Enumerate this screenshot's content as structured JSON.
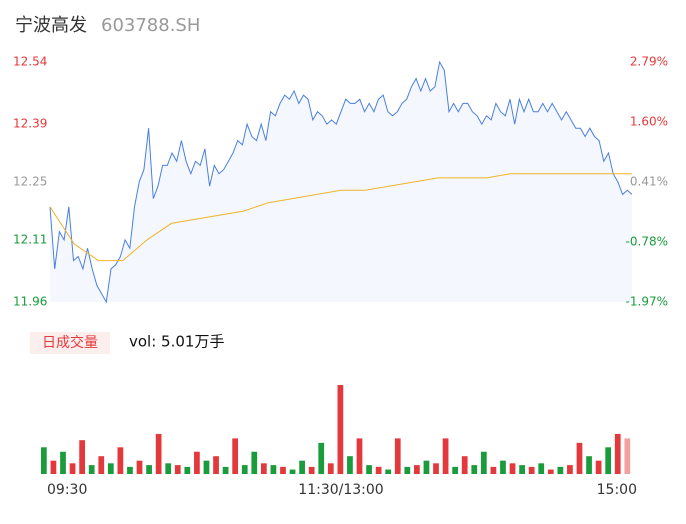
{
  "header": {
    "title": "宁波高发",
    "code": "603788.SH"
  },
  "chart_data": {
    "type": "line",
    "xlim": [
      0,
      240
    ],
    "xticks": [
      {
        "value": 0,
        "label": "09:30"
      },
      {
        "value": 120,
        "label": "11:30/13:00"
      },
      {
        "value": 240,
        "label": "15:00"
      }
    ],
    "ylim": [
      11.96,
      12.54
    ],
    "yticks": [
      11.96,
      12.11,
      12.25,
      12.39,
      12.54
    ],
    "ytick_colors": [
      "#1a9c3c",
      "#1a9c3c",
      "#999999",
      "#e4393c",
      "#e4393c"
    ],
    "y2lim": [
      -1.97,
      2.79
    ],
    "y2ticks": [
      {
        "value": -1.97,
        "label": "-1.97%"
      },
      {
        "value": -0.78,
        "label": "-0.78%"
      },
      {
        "value": 0.41,
        "label": "0.41%"
      },
      {
        "value": 1.6,
        "label": "1.60%"
      },
      {
        "value": 2.79,
        "label": "2.79%"
      }
    ],
    "series": [
      {
        "name": "price",
        "color": "#4a7fe0",
        "values": [
          12.19,
          12.04,
          12.13,
          12.11,
          12.19,
          12.06,
          12.07,
          12.04,
          12.09,
          12.04,
          12.0,
          11.98,
          11.96,
          12.04,
          12.05,
          12.07,
          12.11,
          12.09,
          12.19,
          12.25,
          12.28,
          12.38,
          12.21,
          12.24,
          12.29,
          12.29,
          12.32,
          12.3,
          12.35,
          12.3,
          12.27,
          12.3,
          12.29,
          12.33,
          12.24,
          12.29,
          12.27,
          12.28,
          12.3,
          12.32,
          12.35,
          12.34,
          12.39,
          12.36,
          12.35,
          12.39,
          12.35,
          12.42,
          12.41,
          12.44,
          12.46,
          12.45,
          12.47,
          12.44,
          12.46,
          12.45,
          12.4,
          12.42,
          12.41,
          12.39,
          12.4,
          12.39,
          12.42,
          12.45,
          12.44,
          12.44,
          12.45,
          12.42,
          12.44,
          12.42,
          12.45,
          12.46,
          12.42,
          12.41,
          12.42,
          12.44,
          12.45,
          12.48,
          12.5,
          12.47,
          12.5,
          12.47,
          12.48,
          12.54,
          12.52,
          12.42,
          12.44,
          12.42,
          12.44,
          12.44,
          12.42,
          12.41,
          12.39,
          12.41,
          12.4,
          12.44,
          12.42,
          12.41,
          12.45,
          12.39,
          12.45,
          12.42,
          12.45,
          12.42,
          12.42,
          12.44,
          12.42,
          12.44,
          12.42,
          12.4,
          12.42,
          12.4,
          12.38,
          12.38,
          12.36,
          12.38,
          12.36,
          12.35,
          12.3,
          12.32,
          12.27,
          12.25,
          12.22,
          12.23,
          12.22
        ]
      },
      {
        "name": "average",
        "color": "#f0b429",
        "values": [
          12.19,
          12.1,
          12.06,
          12.06,
          12.11,
          12.15,
          12.16,
          12.17,
          12.18,
          12.2,
          12.21,
          12.22,
          12.23,
          12.23,
          12.24,
          12.25,
          12.26,
          12.26,
          12.26,
          12.27,
          12.27,
          12.27,
          12.27,
          12.27,
          12.27
        ]
      }
    ],
    "volume": {
      "label": "日成交量",
      "text": "vol: 5.01万手",
      "ylim": [
        0,
        100
      ],
      "values": [
        30,
        15,
        25,
        12,
        38,
        10,
        20,
        12,
        30,
        8,
        15,
        10,
        45,
        12,
        10,
        8,
        25,
        15,
        20,
        8,
        40,
        10,
        25,
        12,
        10,
        8,
        5,
        15,
        8,
        35,
        12,
        100,
        20,
        40,
        10,
        8,
        5,
        40,
        8,
        10,
        15,
        12,
        40,
        8,
        20,
        10,
        25,
        8,
        15,
        12,
        10,
        8,
        12,
        5,
        8,
        10,
        35,
        20,
        15,
        30,
        45,
        40
      ],
      "colors": [
        "#1a9c3c",
        "#e4393c",
        "#1a9c3c",
        "#e4393c",
        "#e4393c",
        "#1a9c3c",
        "#e4393c",
        "#1a9c3c",
        "#e4393c",
        "#1a9c3c",
        "#e4393c",
        "#1a9c3c",
        "#e4393c",
        "#1a9c3c",
        "#e4393c",
        "#1a9c3c",
        "#e4393c",
        "#1a9c3c",
        "#e4393c",
        "#1a9c3c",
        "#e4393c",
        "#1a9c3c",
        "#1a9c3c",
        "#e4393c",
        "#1a9c3c",
        "#e4393c",
        "#1a9c3c",
        "#1a9c3c",
        "#e4393c",
        "#1a9c3c",
        "#e4393c",
        "#e4393c",
        "#1a9c3c",
        "#e4393c",
        "#1a9c3c",
        "#e4393c",
        "#1a9c3c",
        "#e4393c",
        "#1a9c3c",
        "#e4393c",
        "#1a9c3c",
        "#e4393c",
        "#e4393c",
        "#1a9c3c",
        "#e4393c",
        "#1a9c3c",
        "#1a9c3c",
        "#e4393c",
        "#1a9c3c",
        "#e4393c",
        "#1a9c3c",
        "#e4393c",
        "#1a9c3c",
        "#e4393c",
        "#1a9c3c",
        "#e4393c",
        "#e4393c",
        "#1a9c3c",
        "#e4393c",
        "#1a9c3c",
        "#e4393c",
        "#f4a0a0"
      ]
    }
  }
}
